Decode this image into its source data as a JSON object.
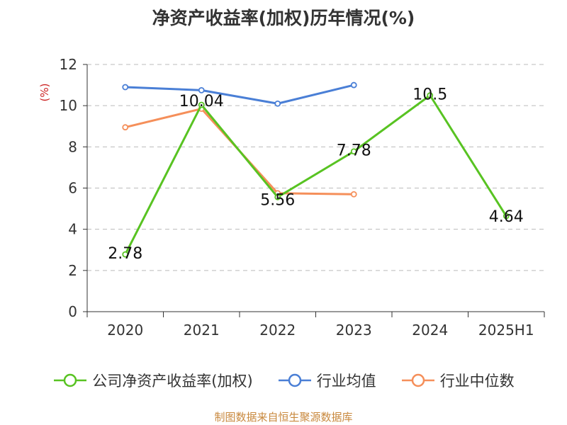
{
  "chart_data": {
    "type": "line",
    "title": "净资产收益率(加权)历年情况(%)",
    "ylabel": "(%)",
    "xlabel": "",
    "categories": [
      "2020",
      "2021",
      "2022",
      "2023",
      "2024",
      "2025H1"
    ],
    "ylim": [
      0,
      12
    ],
    "yticks": [
      0,
      2,
      4,
      6,
      8,
      10,
      12
    ],
    "grid": "horizontal dashed",
    "legend_position": "bottom",
    "series": [
      {
        "name": "公司净资产收益率(加权)",
        "color": "#58c322",
        "values": [
          2.78,
          10.04,
          5.56,
          7.78,
          10.5,
          4.64
        ],
        "data_labels": [
          "2.78",
          "10.04",
          "5.56",
          "7.78",
          "10.5",
          "4.64"
        ]
      },
      {
        "name": "行业均值",
        "color": "#4a7fd6",
        "values": [
          10.9,
          10.75,
          10.1,
          11.0,
          null,
          null
        ]
      },
      {
        "name": "行业中位数",
        "color": "#f58f5a",
        "values": [
          8.95,
          9.85,
          5.75,
          5.7,
          null,
          null
        ]
      }
    ]
  },
  "colors": {
    "ylabel": "#cc2222",
    "source": "#c8883d",
    "grid": "#bbbbbb",
    "axis": "#333333"
  },
  "source_text": "制图数据来自恒生聚源数据库"
}
